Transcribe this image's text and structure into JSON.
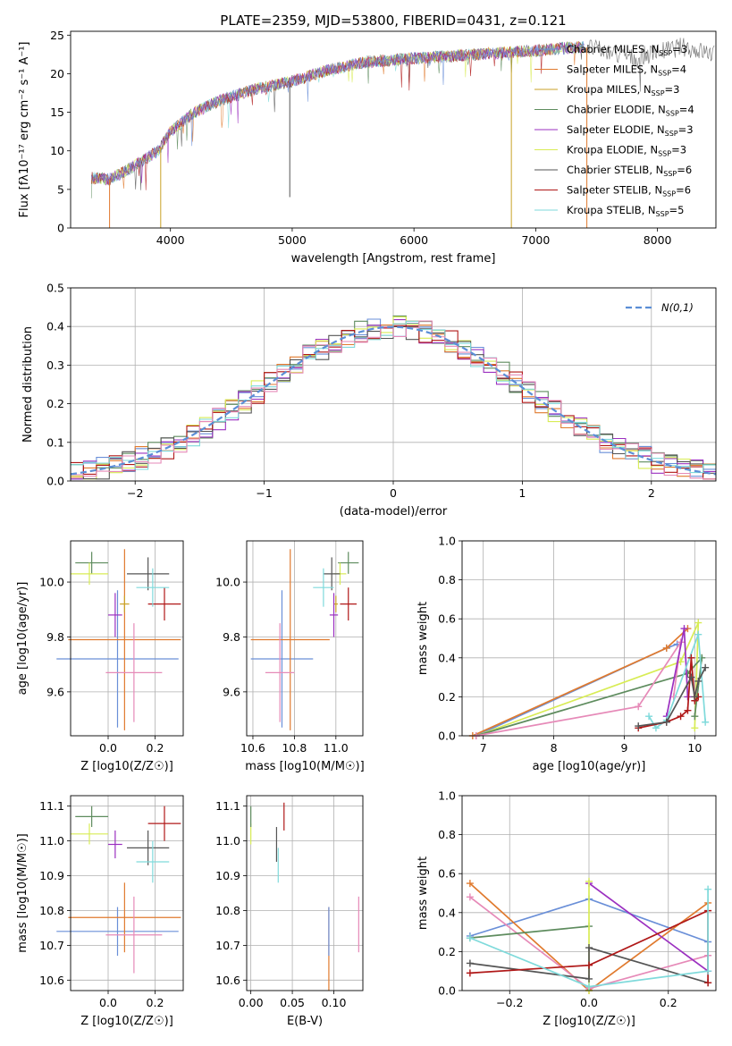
{
  "title": "PLATE=2359, MJD=53800, FIBERID=0431, z=0.121",
  "colors": {
    "Chabrier MILES": "#6a8fd8",
    "Salpeter MILES": "#e07a2e",
    "Kroupa MILES": "#c9a227",
    "Chabrier ELODIE": "#5e8c5e",
    "Salpeter ELODIE": "#9b30c0",
    "Kroupa ELODIE": "#d8ec55",
    "Chabrier STELIB": "#555555",
    "Salpeter STELIB": "#b01818",
    "Kroupa STELIB": "#7fdadb",
    "pink": "#e68ab8",
    "grid": "#b0b0b0",
    "normal": "#5b8ed6"
  },
  "chart_data": [
    {
      "type": "line",
      "name": "spectrum",
      "xlabel": "wavelength [Angstrom, rest frame]",
      "ylabel": "Flux [fλ10⁻¹⁷ erg cm⁻² s⁻¹ A⁻¹]",
      "xlim": [
        3180,
        8480
      ],
      "ylim": [
        0,
        25.5
      ],
      "xticks": [
        "4000",
        "5000",
        "6000",
        "7000",
        "8000"
      ],
      "yticks": [
        "0",
        "5",
        "10",
        "15",
        "20",
        "25"
      ],
      "grid": false,
      "legend_position": "right",
      "legend": [
        {
          "label": "Chabrier MILES",
          "nssp": "3"
        },
        {
          "label": "Salpeter MILES",
          "nssp": "4"
        },
        {
          "label": "Kroupa MILES",
          "nssp": "3"
        },
        {
          "label": "Chabrier ELODIE",
          "nssp": "4"
        },
        {
          "label": "Salpeter ELODIE",
          "nssp": "3"
        },
        {
          "label": "Kroupa ELODIE",
          "nssp": "3"
        },
        {
          "label": "Chabrier STELIB",
          "nssp": "6"
        },
        {
          "label": "Salpeter STELIB",
          "nssp": "6"
        },
        {
          "label": "Kroupa STELIB",
          "nssp": "5"
        }
      ],
      "continuum": [
        [
          3350,
          6.5
        ],
        [
          3500,
          6.3
        ],
        [
          3700,
          8.0
        ],
        [
          3900,
          10.0
        ],
        [
          4000,
          12.5
        ],
        [
          4200,
          15.0
        ],
        [
          4400,
          16.5
        ],
        [
          4700,
          18.0
        ],
        [
          5000,
          19.0
        ],
        [
          5300,
          20.5
        ],
        [
          5600,
          21.5
        ],
        [
          6000,
          22.0
        ],
        [
          6500,
          22.5
        ],
        [
          7000,
          23.0
        ],
        [
          7400,
          23.5
        ],
        [
          7800,
          22.0
        ],
        [
          8200,
          23.5
        ],
        [
          8470,
          22.5
        ]
      ]
    },
    {
      "type": "area",
      "name": "residuals",
      "xlabel": "(data-model)/error",
      "ylabel": "Normed distribution",
      "xlim": [
        -2.5,
        2.5
      ],
      "ylim": [
        0,
        0.5
      ],
      "xticks": [
        "−2",
        "−1",
        "0",
        "1",
        "2"
      ],
      "yticks": [
        "0.0",
        "0.1",
        "0.2",
        "0.3",
        "0.4",
        "0.5"
      ],
      "grid": true,
      "legend": "N(0,1)",
      "bin_width": 0.1
    },
    {
      "type": "scatter",
      "name": "age-vs-Z",
      "xlabel": "Z [log10(Z/Z☉)]",
      "ylabel": "age [log10(age/yr)]",
      "xlim": [
        -0.16,
        0.32
      ],
      "ylim": [
        9.44,
        10.15
      ],
      "xticks": [
        "0.0",
        "0.2"
      ],
      "yticks": [
        "9.6",
        "9.8",
        "10.0"
      ],
      "points": [
        {
          "series": "Chabrier MILES",
          "x": 0.04,
          "xerr": 0.26,
          "y": 9.72,
          "yerr": 0.25
        },
        {
          "series": "Salpeter MILES",
          "x": 0.07,
          "xerr": 0.24,
          "y": 9.79,
          "yerr": 0.33
        },
        {
          "series": "Kroupa MILES",
          "x": 0.07,
          "xerr": 0.02,
          "y": 9.92,
          "yerr": 0.03
        },
        {
          "series": "Chabrier ELODIE",
          "x": -0.07,
          "xerr": 0.07,
          "y": 10.07,
          "yerr": 0.04
        },
        {
          "series": "Salpeter ELODIE",
          "x": 0.03,
          "xerr": 0.03,
          "y": 9.88,
          "yerr": 0.08
        },
        {
          "series": "Kroupa ELODIE",
          "x": -0.08,
          "xerr": 0.08,
          "y": 10.03,
          "yerr": 0.04
        },
        {
          "series": "Chabrier STELIB",
          "x": 0.17,
          "xerr": 0.09,
          "y": 10.03,
          "yerr": 0.06
        },
        {
          "series": "Salpeter STELIB",
          "x": 0.24,
          "xerr": 0.07,
          "y": 9.92,
          "yerr": 0.06
        },
        {
          "series": "Kroupa STELIB",
          "x": 0.19,
          "xerr": 0.07,
          "y": 9.98,
          "yerr": 0.07
        },
        {
          "series": "pink",
          "x": 0.11,
          "xerr": 0.12,
          "y": 9.67,
          "yerr": 0.18
        }
      ]
    },
    {
      "type": "scatter",
      "name": "age-vs-mass",
      "xlabel": "mass [log10(M/M☉)]",
      "ylabel": "",
      "xlim": [
        10.57,
        11.13
      ],
      "ylim": [
        9.44,
        10.15
      ],
      "xticks": [
        "10.6",
        "10.8",
        "11.0"
      ],
      "yticks": [
        "9.6",
        "9.8",
        "10.0"
      ],
      "points": [
        {
          "series": "Chabrier MILES",
          "x": 10.74,
          "xerr": 0.15,
          "y": 9.72,
          "yerr": 0.25
        },
        {
          "series": "Salpeter MILES",
          "x": 10.78,
          "xerr": 0.19,
          "y": 9.79,
          "yerr": 0.33
        },
        {
          "series": "Kroupa MILES",
          "x": 11.0,
          "xerr": 0.01,
          "y": 9.92,
          "yerr": 0.03
        },
        {
          "series": "Chabrier ELODIE",
          "x": 11.06,
          "xerr": 0.05,
          "y": 10.07,
          "yerr": 0.04
        },
        {
          "series": "Salpeter ELODIE",
          "x": 10.99,
          "xerr": 0.02,
          "y": 9.88,
          "yerr": 0.08
        },
        {
          "series": "Kroupa ELODIE",
          "x": 11.02,
          "xerr": 0.03,
          "y": 10.03,
          "yerr": 0.04
        },
        {
          "series": "Chabrier STELIB",
          "x": 10.98,
          "xerr": 0.04,
          "y": 10.03,
          "yerr": 0.06
        },
        {
          "series": "Salpeter STELIB",
          "x": 11.06,
          "xerr": 0.04,
          "y": 9.92,
          "yerr": 0.06
        },
        {
          "series": "Kroupa STELIB",
          "x": 10.94,
          "xerr": 0.05,
          "y": 9.98,
          "yerr": 0.07
        },
        {
          "series": "pink",
          "x": 10.73,
          "xerr": 0.07,
          "y": 9.67,
          "yerr": 0.18
        }
      ]
    },
    {
      "type": "line",
      "name": "mass-weight-vs-age",
      "xlabel": "age [log10(age/yr)]",
      "ylabel": "mass weight",
      "xlim": [
        6.7,
        10.3
      ],
      "ylim": [
        0,
        1.0
      ],
      "xticks": [
        "7",
        "8",
        "9",
        "10"
      ],
      "yticks": [
        "0.0",
        "0.2",
        "0.4",
        "0.6",
        "0.8",
        "1.0"
      ],
      "grid": true,
      "series": [
        {
          "name": "Chabrier MILES",
          "points": [
            [
              6.9,
              0.0
            ],
            [
              9.6,
              0.45
            ],
            [
              9.75,
              0.47
            ]
          ]
        },
        {
          "name": "Salpeter MILES",
          "points": [
            [
              6.85,
              0.0
            ],
            [
              9.6,
              0.45
            ],
            [
              9.9,
              0.55
            ]
          ]
        },
        {
          "name": "Kroupa ELODIE",
          "points": [
            [
              6.9,
              0.0
            ],
            [
              9.8,
              0.38
            ],
            [
              10.05,
              0.58
            ],
            [
              10.0,
              0.04
            ]
          ]
        },
        {
          "name": "Chabrier ELODIE",
          "points": [
            [
              6.9,
              0.0
            ],
            [
              9.9,
              0.32
            ],
            [
              10.1,
              0.4
            ],
            [
              10.0,
              0.1
            ]
          ]
        },
        {
          "name": "pink",
          "points": [
            [
              6.9,
              0.0
            ],
            [
              9.2,
              0.15
            ],
            [
              9.8,
              0.48
            ],
            [
              9.7,
              0.2
            ]
          ]
        },
        {
          "name": "Salpeter ELODIE",
          "points": [
            [
              9.6,
              0.1
            ],
            [
              9.85,
              0.55
            ],
            [
              9.9,
              0.2
            ]
          ]
        },
        {
          "name": "Kroupa STELIB",
          "points": [
            [
              9.35,
              0.1
            ],
            [
              9.45,
              0.04
            ],
            [
              9.6,
              0.08
            ],
            [
              10.05,
              0.52
            ],
            [
              10.15,
              0.07
            ]
          ]
        },
        {
          "name": "Salpeter STELIB",
          "points": [
            [
              9.2,
              0.04
            ],
            [
              9.6,
              0.07
            ],
            [
              9.8,
              0.1
            ],
            [
              9.9,
              0.13
            ],
            [
              9.95,
              0.4
            ],
            [
              10.0,
              0.18
            ],
            [
              10.05,
              0.2
            ]
          ]
        },
        {
          "name": "Chabrier STELIB",
          "points": [
            [
              9.2,
              0.05
            ],
            [
              9.6,
              0.07
            ],
            [
              9.95,
              0.3
            ],
            [
              10.0,
              0.2
            ],
            [
              10.05,
              0.28
            ],
            [
              10.15,
              0.35
            ]
          ]
        }
      ]
    },
    {
      "type": "scatter",
      "name": "mass-vs-Z",
      "xlabel": "Z [log10(Z/Z☉)]",
      "ylabel": "mass [log10(M/M☉)]",
      "xlim": [
        -0.16,
        0.32
      ],
      "ylim": [
        10.57,
        11.13
      ],
      "xticks": [
        "0.0",
        "0.2"
      ],
      "yticks": [
        "10.6",
        "10.7",
        "10.8",
        "10.9",
        "11.0",
        "11.1"
      ],
      "points": [
        {
          "series": "Chabrier MILES",
          "x": 0.04,
          "xerr": 0.26,
          "y": 10.74,
          "yerr": 0.07
        },
        {
          "series": "Salpeter MILES",
          "x": 0.07,
          "xerr": 0.24,
          "y": 10.78,
          "yerr": 0.1
        },
        {
          "series": "Chabrier ELODIE",
          "x": -0.07,
          "xerr": 0.07,
          "y": 11.07,
          "yerr": 0.03
        },
        {
          "series": "Salpeter ELODIE",
          "x": 0.03,
          "xerr": 0.03,
          "y": 10.99,
          "yerr": 0.04
        },
        {
          "series": "Kroupa ELODIE",
          "x": -0.08,
          "xerr": 0.08,
          "y": 11.02,
          "yerr": 0.03
        },
        {
          "series": "Chabrier STELIB",
          "x": 0.17,
          "xerr": 0.09,
          "y": 10.98,
          "yerr": 0.05
        },
        {
          "series": "Salpeter STELIB",
          "x": 0.24,
          "xerr": 0.07,
          "y": 11.05,
          "yerr": 0.05
        },
        {
          "series": "Kroupa STELIB",
          "x": 0.19,
          "xerr": 0.07,
          "y": 10.94,
          "yerr": 0.06
        },
        {
          "series": "pink",
          "x": 0.11,
          "xerr": 0.12,
          "y": 10.73,
          "yerr": 0.11
        }
      ]
    },
    {
      "type": "scatter",
      "name": "mass-vs-EBV",
      "xlabel": "E(B-V)",
      "ylabel": "",
      "xlim": [
        -0.005,
        0.135
      ],
      "ylim": [
        10.57,
        11.13
      ],
      "xticks": [
        "0.00",
        "0.05",
        "0.10"
      ],
      "yticks": [
        "10.6",
        "10.7",
        "10.8",
        "10.9",
        "11.0",
        "11.1"
      ],
      "points": [
        {
          "series": "Kroupa ELODIE",
          "x": 0.0,
          "y": 11.02,
          "yerr": 0.03
        },
        {
          "series": "Chabrier ELODIE",
          "x": 0.0,
          "y": 11.07,
          "yerr": 0.03
        },
        {
          "series": "Chabrier STELIB",
          "x": 0.031,
          "y": 10.99,
          "yerr": 0.05
        },
        {
          "series": "Kroupa STELIB",
          "x": 0.033,
          "y": 10.93,
          "yerr": 0.05
        },
        {
          "series": "Salpeter STELIB",
          "x": 0.04,
          "y": 11.07,
          "yerr": 0.04
        },
        {
          "series": "Salpeter MILES",
          "x": 0.094,
          "y": 10.69,
          "yerr": 0.12
        },
        {
          "series": "Chabrier MILES",
          "x": 0.094,
          "y": 10.74,
          "yerr": 0.07
        },
        {
          "series": "pink",
          "x": 0.13,
          "y": 10.76,
          "yerr": 0.08
        }
      ]
    },
    {
      "type": "line",
      "name": "mass-weight-vs-Z",
      "xlabel": "Z [log10(Z/Z☉)]",
      "ylabel": "mass weight",
      "xlim": [
        -0.32,
        0.32
      ],
      "ylim": [
        0,
        1.0
      ],
      "xticks": [
        "−0.2",
        "0.0",
        "0.2"
      ],
      "yticks": [
        "0.0",
        "0.2",
        "0.4",
        "0.6",
        "0.8",
        "1.0"
      ],
      "grid": true,
      "series": [
        {
          "name": "Chabrier MILES",
          "points": [
            [
              -0.3,
              0.28
            ],
            [
              0.0,
              0.47
            ],
            [
              0.3,
              0.25
            ]
          ]
        },
        {
          "name": "Salpeter MILES",
          "points": [
            [
              -0.3,
              0.55
            ],
            [
              0.0,
              0.0
            ],
            [
              0.3,
              0.45
            ]
          ]
        },
        {
          "name": "pink",
          "points": [
            [
              -0.3,
              0.48
            ],
            [
              0.0,
              0.01
            ],
            [
              0.3,
              0.18
            ]
          ]
        },
        {
          "name": "Chabrier ELODIE",
          "points": [
            [
              -0.3,
              0.27
            ],
            [
              0.0,
              0.33
            ]
          ]
        },
        {
          "name": "Salpeter ELODIE",
          "points": [
            [
              0.0,
              0.55
            ],
            [
              0.3,
              0.1
            ]
          ]
        },
        {
          "name": "Kroupa ELODIE",
          "points": [
            [
              0.0,
              0.56
            ],
            [
              0.0,
              0.0
            ]
          ]
        },
        {
          "name": "Chabrier STELIB",
          "points": [
            [
              -0.3,
              0.14
            ],
            [
              0.0,
              0.06
            ],
            [
              0.0,
              0.22
            ],
            [
              0.3,
              0.04
            ]
          ]
        },
        {
          "name": "Salpeter STELIB",
          "points": [
            [
              -0.3,
              0.09
            ],
            [
              0.0,
              0.13
            ],
            [
              0.3,
              0.41
            ],
            [
              0.3,
              0.04
            ]
          ]
        },
        {
          "name": "Kroupa STELIB",
          "points": [
            [
              -0.3,
              0.27
            ],
            [
              0.0,
              0.02
            ],
            [
              0.3,
              0.1
            ],
            [
              0.3,
              0.52
            ]
          ]
        }
      ]
    }
  ]
}
